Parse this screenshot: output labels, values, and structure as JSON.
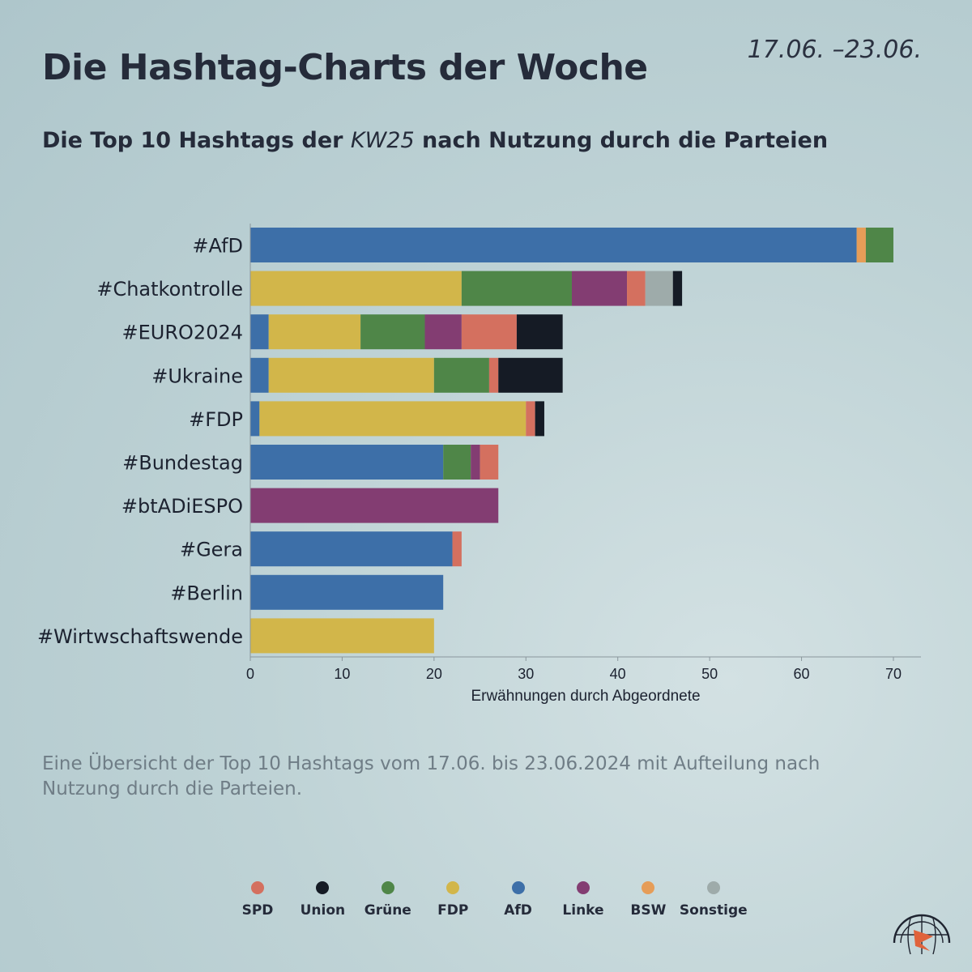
{
  "header": {
    "title": "Die Hashtag-Charts der Woche",
    "date_range": "17.06. –23.06.",
    "subtitle_pre": "Die Top 10 Hashtags der ",
    "subtitle_em": "KW25",
    "subtitle_post": " nach Nutzung durch die Parteien"
  },
  "caption": "Eine Übersicht der Top 10 Hashtags vom 17.06. bis 23.06.2024 mit Aufteilung nach Nutzung durch die Parteien.",
  "colors": {
    "SPD": "#d4705f",
    "Union": "#151b25",
    "Grüne": "#4f8648",
    "FDP": "#d2b64a",
    "AfD": "#3d6fa8",
    "Linke": "#833d72",
    "BSW": "#e69d58",
    "Sonstige": "#9eabaa"
  },
  "legend": [
    "SPD",
    "Union",
    "Grüne",
    "FDP",
    "AfD",
    "Linke",
    "BSW",
    "Sonstige"
  ],
  "chart_data": {
    "type": "bar",
    "orientation": "horizontal",
    "stacked": true,
    "xlabel": "Erwähnungen durch Abgeordnete",
    "xlim": [
      0,
      73
    ],
    "xticks": [
      0,
      10,
      20,
      30,
      40,
      50,
      60,
      70
    ],
    "categories": [
      "#AfD",
      "#Chatkontrolle",
      "#EURO2024",
      "#Ukraine",
      "#FDP",
      "#Bundestag",
      "#btADiESPO",
      "#Gera",
      "#Berlin",
      "#Wirtwschaftswende"
    ],
    "series": [
      {
        "name": "AfD",
        "values": [
          66,
          0,
          2,
          2,
          1,
          21,
          0,
          22,
          21,
          0
        ]
      },
      {
        "name": "FDP",
        "values": [
          0,
          23,
          10,
          18,
          29,
          0,
          0,
          0,
          0,
          20
        ]
      },
      {
        "name": "BSW",
        "values": [
          1,
          0,
          0,
          0,
          0,
          0,
          0,
          0,
          0,
          0
        ]
      },
      {
        "name": "Grüne",
        "values": [
          3,
          12,
          7,
          6,
          0,
          3,
          0,
          0,
          0,
          0
        ]
      },
      {
        "name": "Linke",
        "values": [
          0,
          6,
          4,
          0,
          0,
          1,
          27,
          0,
          0,
          0
        ]
      },
      {
        "name": "SPD",
        "values": [
          0,
          2,
          6,
          1,
          1,
          2,
          0,
          1,
          0,
          0
        ]
      },
      {
        "name": "Sonstige",
        "values": [
          0,
          3,
          0,
          0,
          0,
          0,
          0,
          0,
          0,
          0
        ]
      },
      {
        "name": "Union",
        "values": [
          0,
          1,
          5,
          7,
          1,
          0,
          0,
          0,
          0,
          0
        ]
      }
    ]
  }
}
